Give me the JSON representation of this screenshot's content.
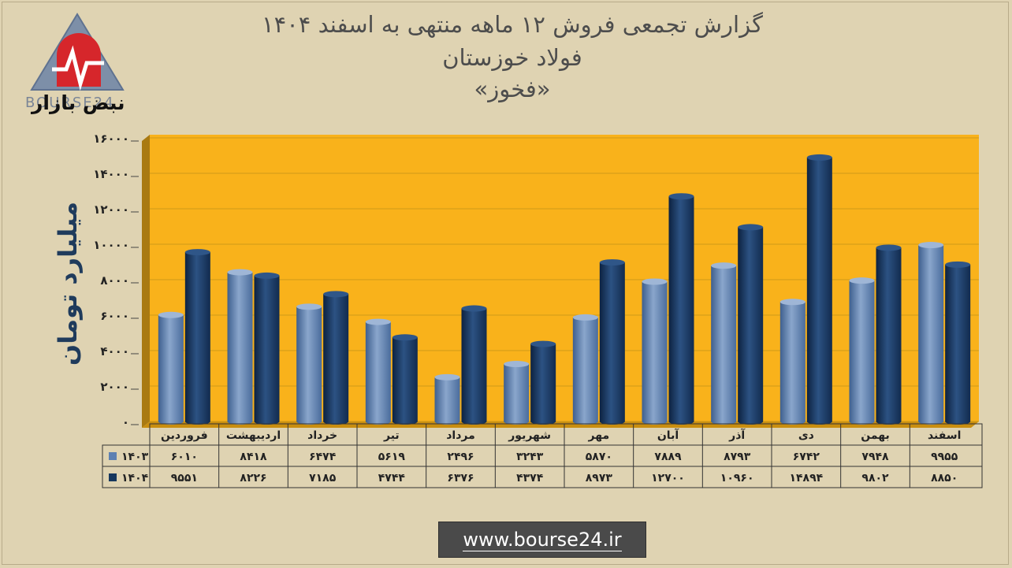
{
  "title": {
    "line1": "گزارش تجمعی فروش ۱۲ ماهه منتهی به اسفند ۱۴۰۴",
    "line2": "فولاد خوزستان",
    "line3": "«فخوز»"
  },
  "logo": {
    "brand_text": "نبض بازار",
    "sub_text": "BOURSE24"
  },
  "footer": {
    "url": "www.bourse24.ir"
  },
  "colors": {
    "background": "#dfd3b2",
    "plot_area": "#f9b21b",
    "series_1403": "#5d80b2",
    "series_1404": "#17375e",
    "axis_text": "#1f3b5c"
  },
  "chart_data": {
    "type": "bar",
    "ylabel": "میلیارد تومان",
    "ylim": [
      0,
      16000
    ],
    "yticks": [
      0,
      2000,
      4000,
      6000,
      8000,
      10000,
      12000,
      14000,
      16000
    ],
    "ytick_labels": [
      "۰",
      "۲۰۰۰",
      "۴۰۰۰",
      "۶۰۰۰",
      "۸۰۰۰",
      "۱۰۰۰۰",
      "۱۲۰۰۰",
      "۱۴۰۰۰",
      "۱۶۰۰۰"
    ],
    "grid": true,
    "categories": [
      "فروردین",
      "اردیبهشت",
      "خرداد",
      "تیر",
      "مرداد",
      "شهریور",
      "مهر",
      "آبان",
      "آذر",
      "دی",
      "بهمن",
      "اسفند"
    ],
    "series": [
      {
        "name": "۱۴۰۳",
        "values": [
          6010,
          8418,
          6474,
          5619,
          2496,
          3243,
          5870,
          7889,
          8793,
          6742,
          7948,
          9955
        ],
        "labels": [
          "۶۰۱۰",
          "۸۴۱۸",
          "۶۴۷۴",
          "۵۶۱۹",
          "۲۴۹۶",
          "۳۲۴۳",
          "۵۸۷۰",
          "۷۸۸۹",
          "۸۷۹۳",
          "۶۷۴۲",
          "۷۹۴۸",
          "۹۹۵۵"
        ]
      },
      {
        "name": "۱۴۰۴",
        "values": [
          9551,
          8226,
          7185,
          4744,
          6376,
          4374,
          8973,
          12700,
          10960,
          14894,
          9802,
          8850
        ],
        "labels": [
          "۹۵۵۱",
          "۸۲۲۶",
          "۷۱۸۵",
          "۴۷۴۴",
          "۶۳۷۶",
          "۴۳۷۴",
          "۸۹۷۳",
          "۱۲۷۰۰",
          "۱۰۹۶۰",
          "۱۴۸۹۴",
          "۹۸۰۲",
          "۸۸۵۰"
        ]
      }
    ],
    "legend": "data-table"
  }
}
